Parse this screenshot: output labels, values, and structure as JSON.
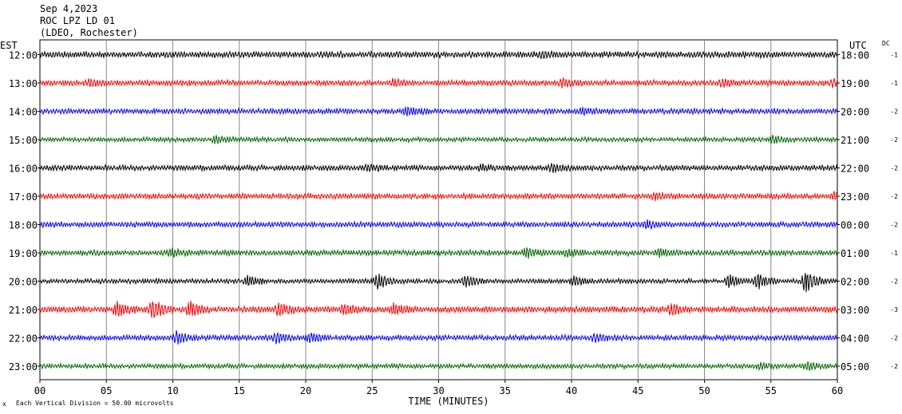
{
  "header": {
    "date": "Sep 4,2023",
    "station": "ROC LPZ LD 01",
    "network": "(LDEO, Rochester)"
  },
  "labels": {
    "left_tz": "EST",
    "right_tz": "UTC",
    "dc": "DC",
    "x_title": "TIME (MINUTES)",
    "scale_note": "Each Vertical Division =   50.00 microvolts"
  },
  "chart_data": {
    "type": "line",
    "title": "",
    "xlabel": "TIME (MINUTES)",
    "ylabel": "",
    "xlim": [
      0,
      60
    ],
    "x_ticks": [
      "00",
      "05",
      "10",
      "15",
      "20",
      "25",
      "30",
      "35",
      "40",
      "45",
      "50",
      "55",
      "60"
    ],
    "grid": true,
    "colors": [
      "#000000",
      "#ff0000",
      "#0000ff",
      "#006600"
    ],
    "rows": [
      {
        "est": "12:00",
        "utc": "18:00",
        "dc": "-1",
        "color": "#000000",
        "amp": 4,
        "events": [
          [
            37.7,
            3
          ]
        ]
      },
      {
        "est": "13:00",
        "utc": "19:00",
        "dc": "-1",
        "color": "#ff0000",
        "amp": 3.5,
        "events": [
          [
            3.8,
            3.5
          ],
          [
            26.6,
            3.5
          ],
          [
            39.3,
            4
          ],
          [
            51.3,
            4
          ],
          [
            59.6,
            3.5
          ]
        ]
      },
      {
        "est": "14:00",
        "utc": "20:00",
        "dc": "-2",
        "color": "#0000ff",
        "amp": 3.5,
        "events": [
          [
            27.6,
            4
          ],
          [
            40.8,
            3
          ]
        ]
      },
      {
        "est": "15:00",
        "utc": "21:00",
        "dc": "-2",
        "color": "#006600",
        "amp": 3,
        "events": [
          [
            13.2,
            4
          ],
          [
            55.1,
            4
          ]
        ]
      },
      {
        "est": "16:00",
        "utc": "22:00",
        "dc": "-2",
        "color": "#000000",
        "amp": 3.5,
        "events": [
          [
            24.7,
            3
          ],
          [
            33.2,
            3
          ],
          [
            38.5,
            4
          ]
        ]
      },
      {
        "est": "17:00",
        "utc": "23:00",
        "dc": "-2",
        "color": "#ff0000",
        "amp": 3.5,
        "events": [
          [
            46.3,
            3
          ],
          [
            59.8,
            4
          ]
        ]
      },
      {
        "est": "18:00",
        "utc": "00:00",
        "dc": "-2",
        "color": "#0000ff",
        "amp": 3.5,
        "events": [
          [
            45.7,
            3.5
          ]
        ]
      },
      {
        "est": "19:00",
        "utc": "01:00",
        "dc": "-1",
        "color": "#006600",
        "amp": 3.5,
        "events": [
          [
            9.9,
            4
          ],
          [
            36.6,
            5
          ],
          [
            39.6,
            4
          ],
          [
            46.6,
            4
          ]
        ]
      },
      {
        "est": "20:00",
        "utc": "02:00",
        "dc": "-2",
        "color": "#000000",
        "amp": 3,
        "events": [
          [
            15.6,
            6
          ],
          [
            25.4,
            8
          ],
          [
            32.0,
            6
          ],
          [
            40.2,
            5
          ],
          [
            51.8,
            7
          ],
          [
            54.0,
            9
          ],
          [
            57.6,
            13
          ]
        ]
      },
      {
        "est": "21:00",
        "utc": "03:00",
        "dc": "-3",
        "color": "#ff0000",
        "amp": 4,
        "events": [
          [
            5.8,
            8
          ],
          [
            8.5,
            11
          ],
          [
            11.3,
            8
          ],
          [
            18.0,
            7
          ],
          [
            22.9,
            6
          ],
          [
            26.6,
            5
          ],
          [
            47.5,
            5
          ]
        ]
      },
      {
        "est": "22:00",
        "utc": "04:00",
        "dc": "-2",
        "color": "#0000ff",
        "amp": 3.5,
        "events": [
          [
            10.3,
            7
          ],
          [
            17.8,
            6
          ],
          [
            20.3,
            5
          ],
          [
            41.8,
            4
          ]
        ]
      },
      {
        "est": "23:00",
        "utc": "05:00",
        "dc": "-2",
        "color": "#006600",
        "amp": 3,
        "events": [
          [
            54.2,
            3
          ],
          [
            57.8,
            4
          ]
        ]
      }
    ]
  }
}
